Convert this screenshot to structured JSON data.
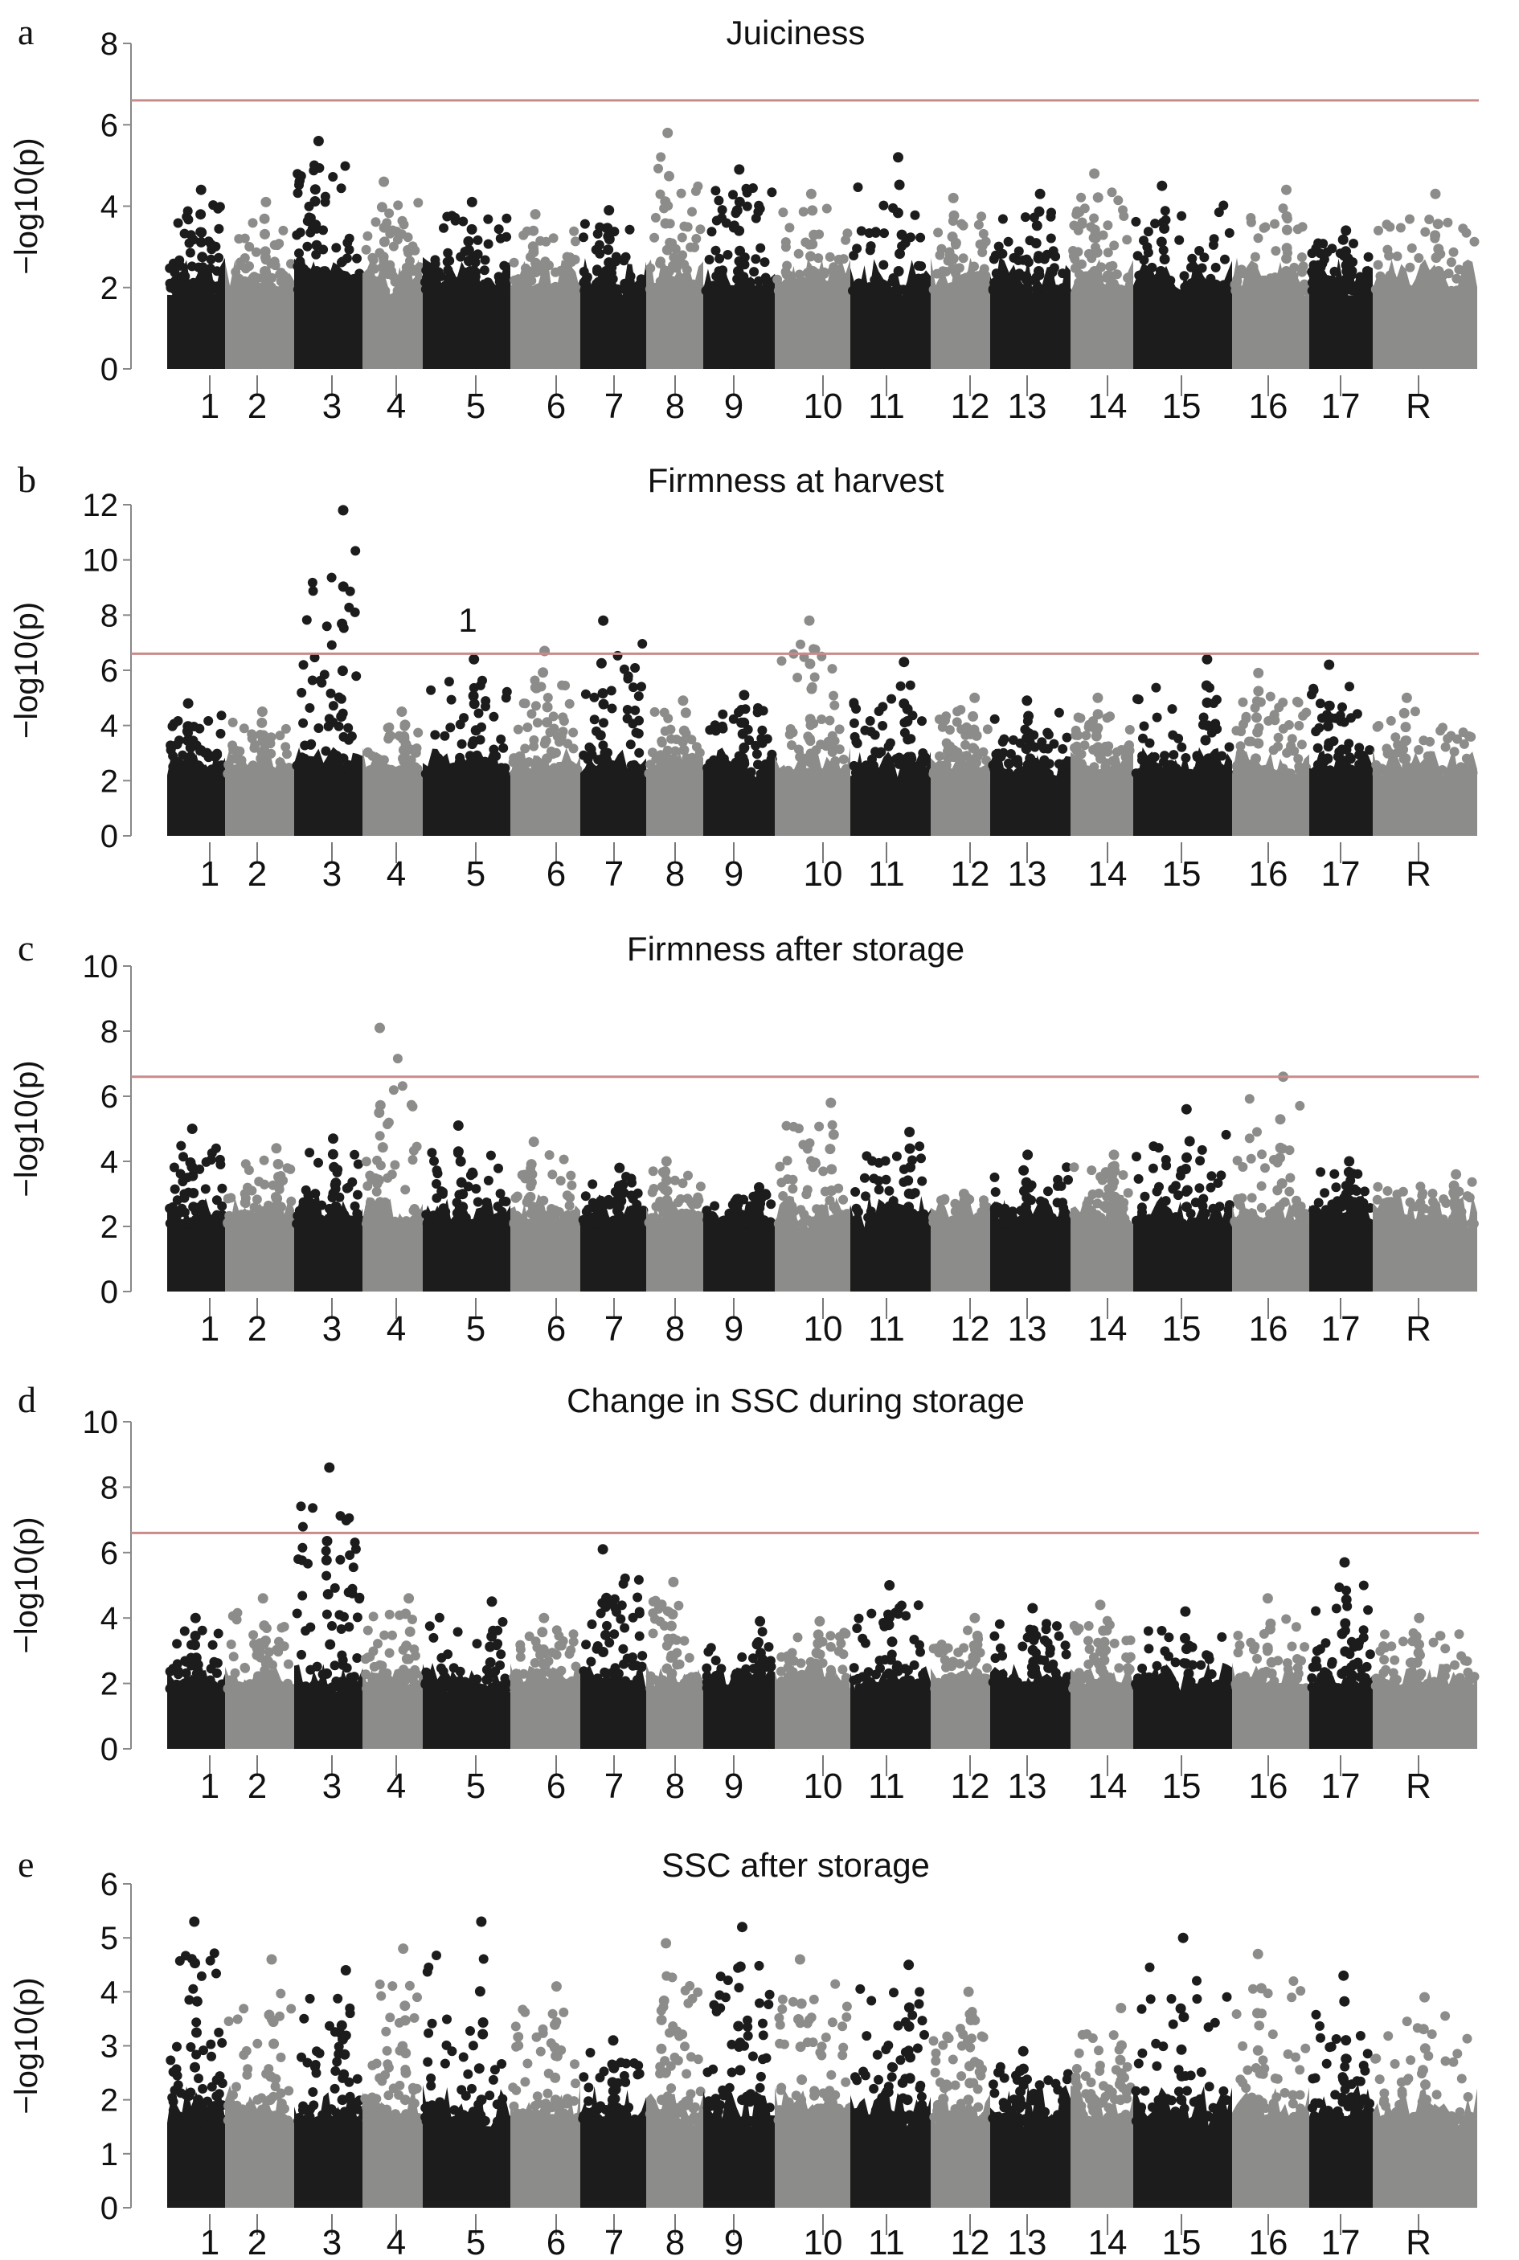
{
  "chart_data": [
    {
      "type": "scatter",
      "panel": "a",
      "title": "Juiciness",
      "ylabel": "−log10(p)",
      "ylim": [
        0,
        8
      ],
      "yticks": [
        0,
        2,
        4,
        6,
        8
      ],
      "threshold": 6.6,
      "chromosomes": [
        "1",
        "2",
        "3",
        "4",
        "5",
        "6",
        "7",
        "8",
        "9",
        "10",
        "11",
        "12",
        "13",
        "14",
        "15",
        "16",
        "17",
        "R"
      ],
      "colors": {
        "odd": "#1c1c1c",
        "even": "#8c8c8a",
        "threshold": "#c98a8a"
      },
      "peak_values": [
        4.4,
        4.1,
        5.6,
        4.6,
        4.1,
        3.8,
        3.9,
        5.8,
        4.9,
        4.3,
        5.2,
        4.2,
        4.3,
        4.8,
        4.5,
        4.4,
        3.4,
        4.3
      ],
      "annotations": []
    },
    {
      "type": "scatter",
      "panel": "b",
      "title": "Firmness at harvest",
      "ylabel": "−log10(p)",
      "ylim": [
        0,
        12
      ],
      "yticks": [
        0,
        2,
        4,
        6,
        8,
        10,
        12
      ],
      "threshold": 6.6,
      "chromosomes": [
        "1",
        "2",
        "3",
        "4",
        "5",
        "6",
        "7",
        "8",
        "9",
        "10",
        "11",
        "12",
        "13",
        "14",
        "15",
        "16",
        "17",
        "R"
      ],
      "colors": {
        "odd": "#1c1c1c",
        "even": "#8c8c8a",
        "threshold": "#c98a8a"
      },
      "peak_values": [
        4.8,
        4.5,
        11.8,
        4.5,
        6.4,
        6.7,
        7.8,
        4.9,
        5.1,
        7.8,
        6.3,
        5.0,
        4.9,
        5.0,
        6.4,
        5.9,
        6.2,
        5.0
      ],
      "annotations": [
        {
          "text": "1",
          "chromosome": "5",
          "y": 7.8
        }
      ]
    },
    {
      "type": "scatter",
      "panel": "c",
      "title": "Firmness after storage",
      "ylabel": "−log10(p)",
      "ylim": [
        0,
        10
      ],
      "yticks": [
        0,
        2,
        4,
        6,
        8,
        10
      ],
      "threshold": 6.6,
      "chromosomes": [
        "1",
        "2",
        "3",
        "4",
        "5",
        "6",
        "7",
        "8",
        "9",
        "10",
        "11",
        "12",
        "13",
        "14",
        "15",
        "16",
        "17",
        "R"
      ],
      "colors": {
        "odd": "#1c1c1c",
        "even": "#8c8c8a",
        "threshold": "#c98a8a"
      },
      "peak_values": [
        5.0,
        4.4,
        4.7,
        8.1,
        5.1,
        4.6,
        3.8,
        4.0,
        3.2,
        5.8,
        4.9,
        3.0,
        4.2,
        4.2,
        5.6,
        6.6,
        4.0,
        3.6
      ],
      "annotations": []
    },
    {
      "type": "scatter",
      "panel": "d",
      "title": "Change in SSC during storage",
      "ylabel": "−log10(p)",
      "ylim": [
        0,
        10
      ],
      "yticks": [
        0,
        2,
        4,
        6,
        8,
        10
      ],
      "threshold": 6.6,
      "chromosomes": [
        "1",
        "2",
        "3",
        "4",
        "5",
        "6",
        "7",
        "8",
        "9",
        "10",
        "11",
        "12",
        "13",
        "14",
        "15",
        "16",
        "17",
        "R"
      ],
      "colors": {
        "odd": "#1c1c1c",
        "even": "#8c8c8a",
        "threshold": "#c98a8a"
      },
      "peak_values": [
        4.0,
        4.6,
        8.6,
        4.6,
        4.5,
        4.0,
        6.1,
        5.1,
        3.9,
        3.9,
        5.0,
        4.0,
        4.3,
        4.4,
        4.2,
        4.6,
        5.7,
        4.0
      ],
      "annotations": []
    },
    {
      "type": "scatter",
      "panel": "e",
      "title": "SSC after storage",
      "ylabel": "−log10(p)",
      "ylim": [
        0,
        6
      ],
      "yticks": [
        0,
        1,
        2,
        3,
        4,
        5,
        6
      ],
      "threshold": null,
      "chromosomes": [
        "1",
        "2",
        "3",
        "4",
        "5",
        "6",
        "7",
        "8",
        "9",
        "10",
        "11",
        "12",
        "13",
        "14",
        "15",
        "16",
        "17",
        "R"
      ],
      "colors": {
        "odd": "#1c1c1c",
        "even": "#8c8c8a",
        "threshold": "#c98a8a"
      },
      "peak_values": [
        5.3,
        4.6,
        4.4,
        4.8,
        5.3,
        4.1,
        3.1,
        4.9,
        5.2,
        4.6,
        4.5,
        4.0,
        2.9,
        3.7,
        5.0,
        4.7,
        4.3,
        3.9
      ],
      "annotations": []
    }
  ]
}
